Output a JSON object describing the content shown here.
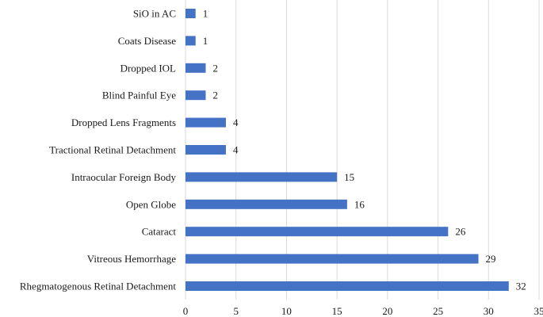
{
  "chart_data": {
    "type": "bar",
    "orientation": "horizontal",
    "title": "",
    "xlabel": "",
    "ylabel": "",
    "xlim": [
      0,
      35
    ],
    "ticks": [
      0,
      5,
      10,
      15,
      20,
      25,
      30,
      35
    ],
    "grid": true,
    "legend": "none",
    "bar_color": "#4472C4",
    "categories": [
      "SiO in AC",
      "Coats Disease",
      "Dropped IOL",
      "Blind Painful Eye",
      "Dropped Lens Fragments",
      "Tractional Retinal Detachment",
      "Intraocular Foreign Body",
      "Open Globe",
      "Cataract",
      "Vitreous Hemorrhage",
      "Rhegmatogenous Retinal Detachment"
    ],
    "values": [
      1,
      1,
      2,
      2,
      4,
      4,
      15,
      16,
      26,
      29,
      32
    ]
  }
}
